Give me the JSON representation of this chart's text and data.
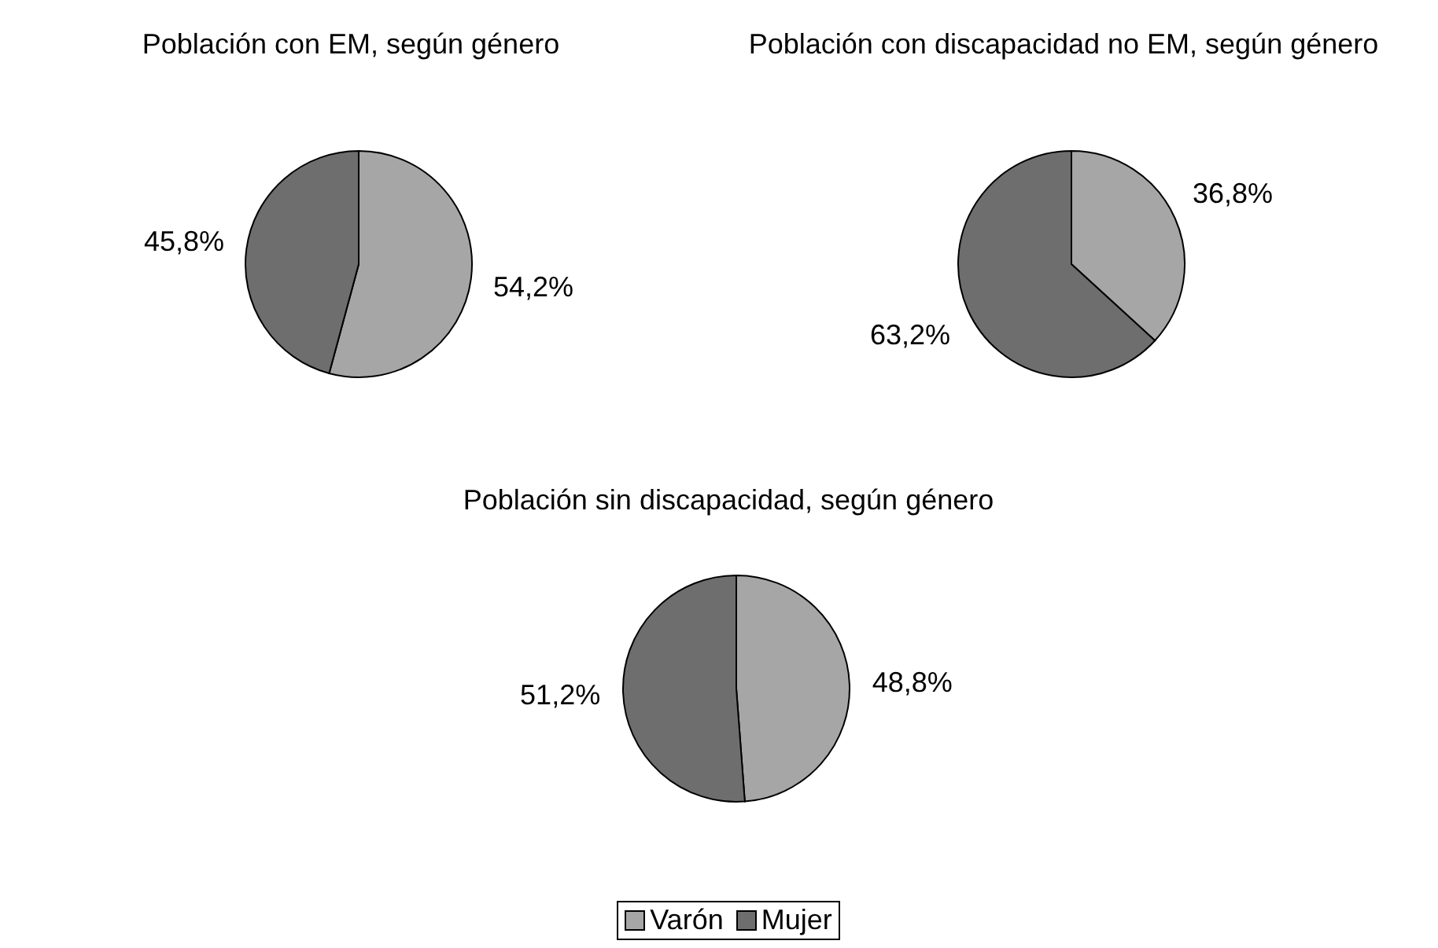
{
  "chart_data": [
    {
      "type": "pie",
      "title": "Población con EM, según género",
      "categories": [
        null,
        null
      ],
      "values": [
        54.2,
        45.8
      ],
      "colors": [
        "#a6a6a6",
        "#6e6e6e"
      ],
      "value_labels": [
        "54,2%",
        "45,8%"
      ],
      "legend": false
    },
    {
      "type": "pie",
      "title": "Población con discapacidad no EM, según género",
      "categories": [
        null,
        null
      ],
      "values": [
        36.8,
        63.2
      ],
      "colors": [
        "#a6a6a6",
        "#6e6e6e"
      ],
      "value_labels": [
        "36,8%",
        "63,2%"
      ],
      "legend": false
    },
    {
      "type": "pie",
      "title": "Población sin discapacidad, según género",
      "categories": [
        "Varón",
        "Mujer"
      ],
      "values": [
        48.8,
        51.2
      ],
      "colors": [
        "#a6a6a6",
        "#6e6e6e"
      ],
      "value_labels": [
        "48,8%",
        "51,2%"
      ],
      "legend": "bottom"
    }
  ]
}
